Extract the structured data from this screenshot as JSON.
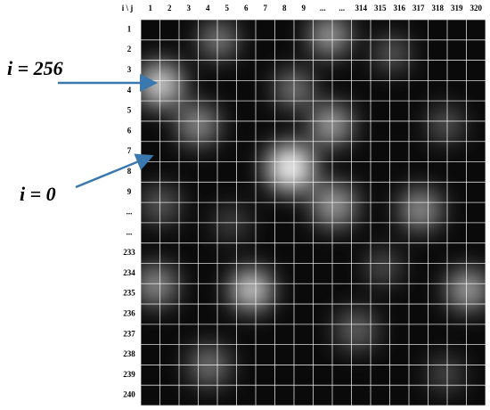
{
  "header": {
    "corner": "i \\ j"
  },
  "columns": [
    "1",
    "2",
    "3",
    "4",
    "5",
    "6",
    "7",
    "8",
    "9",
    "...",
    "...",
    "314",
    "315",
    "316",
    "317",
    "318",
    "319",
    "320"
  ],
  "rows": [
    "1",
    "2",
    "3",
    "4",
    "5",
    "6",
    "7",
    "8",
    "9",
    "...",
    "...",
    "233",
    "234",
    "235",
    "236",
    "237",
    "238",
    "239",
    "240"
  ],
  "annotations": [
    {
      "label": "i = 256"
    },
    {
      "label": "i = 0"
    }
  ]
}
